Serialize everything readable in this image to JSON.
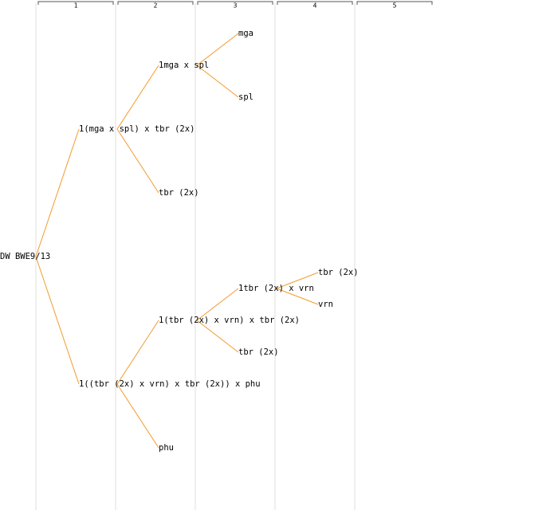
{
  "columns": [
    "1",
    "2",
    "3",
    "4",
    "5"
  ],
  "tree": {
    "label": "DW BWE9/13",
    "children": [
      {
        "label": "1(mga x spl) x tbr (2x)",
        "children": [
          {
            "label": "1mga x spl",
            "children": [
              {
                "label": "mga",
                "children": []
              },
              {
                "label": "spl",
                "children": []
              }
            ]
          },
          {
            "label": "tbr (2x)",
            "children": []
          }
        ]
      },
      {
        "label": "1((tbr (2x) x vrn) x tbr (2x)) x phu",
        "children": [
          {
            "label": "1(tbr (2x) x vrn) x tbr (2x)",
            "children": [
              {
                "label": "1tbr (2x) x vrn",
                "children": [
                  {
                    "label": "tbr (2x)",
                    "children": []
                  },
                  {
                    "label": "vrn",
                    "children": []
                  }
                ]
              },
              {
                "label": "tbr (2x)",
                "children": []
              }
            ]
          },
          {
            "label": "phu",
            "children": []
          }
        ]
      }
    ]
  }
}
